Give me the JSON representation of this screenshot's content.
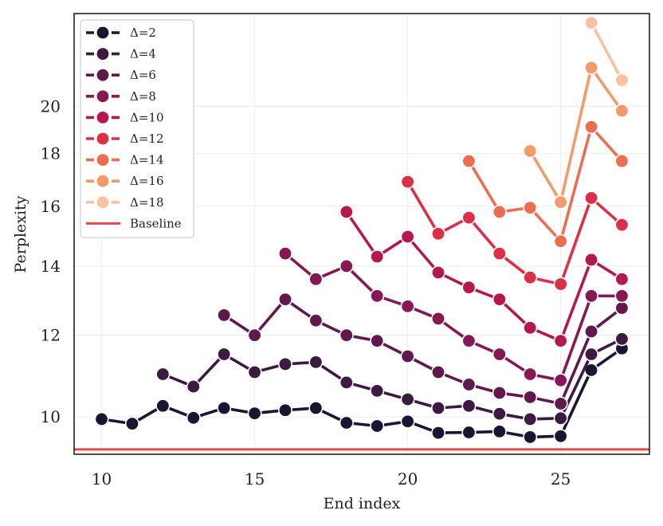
{
  "chart_data": {
    "type": "line",
    "title": "",
    "xlabel": "End index",
    "ylabel": "Perplexity",
    "yscale": "log",
    "xlim": [
      9.1,
      27.9
    ],
    "ylim": [
      9.2,
      24.6
    ],
    "x_ticks": [
      10,
      15,
      20,
      25
    ],
    "y_ticks": [
      10,
      12,
      14,
      16,
      18,
      20
    ],
    "grid": true,
    "legend_position": "top-left",
    "baseline": {
      "name": "Baseline",
      "value": 9.3,
      "color": "#e8474c"
    },
    "series": [
      {
        "name": "Δ=2",
        "color": "#1c1433",
        "x": [
          10,
          11,
          12,
          13,
          14,
          15,
          16,
          17,
          18,
          19,
          20,
          21,
          22,
          23,
          24,
          25,
          26,
          27
        ],
        "y": [
          9.95,
          9.85,
          10.25,
          9.98,
          10.2,
          10.08,
          10.15,
          10.2,
          9.87,
          9.8,
          9.9,
          9.65,
          9.66,
          9.68,
          9.56,
          9.58,
          11.1,
          11.65
        ]
      },
      {
        "name": "Δ=4",
        "color": "#3d1a42",
        "x": [
          12,
          13,
          14,
          15,
          16,
          17,
          18,
          19,
          20,
          21,
          22,
          23,
          24,
          25,
          26,
          27
        ],
        "y": [
          11.0,
          10.7,
          11.5,
          11.05,
          11.25,
          11.3,
          10.8,
          10.6,
          10.4,
          10.2,
          10.25,
          10.07,
          9.95,
          9.97,
          11.5,
          11.9
        ]
      },
      {
        "name": "Δ=6",
        "color": "#60184d",
        "x": [
          14,
          15,
          16,
          17,
          18,
          19,
          20,
          21,
          22,
          23,
          24,
          25,
          26,
          27
        ],
        "y": [
          12.55,
          12.0,
          13.0,
          12.4,
          12.0,
          11.85,
          11.45,
          11.05,
          10.75,
          10.55,
          10.45,
          10.3,
          12.1,
          12.75
        ]
      },
      {
        "name": "Δ=8",
        "color": "#861853",
        "x": [
          16,
          17,
          18,
          19,
          20,
          21,
          22,
          23,
          24,
          25,
          26,
          27
        ],
        "y": [
          14.4,
          13.6,
          14.0,
          13.1,
          12.8,
          12.45,
          11.85,
          11.5,
          11.0,
          10.85,
          13.1,
          13.1
        ]
      },
      {
        "name": "Δ=10",
        "color": "#b41851",
        "x": [
          18,
          19,
          20,
          21,
          22,
          23,
          24,
          25,
          26,
          27
        ],
        "y": [
          15.8,
          14.3,
          14.95,
          13.8,
          13.35,
          13.0,
          12.2,
          11.85,
          14.2,
          13.6
        ]
      },
      {
        "name": "Δ=12",
        "color": "#dc2f48",
        "x": [
          20,
          21,
          22,
          23,
          24,
          25,
          26,
          27
        ],
        "y": [
          16.9,
          15.05,
          15.6,
          14.4,
          13.65,
          13.45,
          16.3,
          15.35
        ]
      },
      {
        "name": "Δ=14",
        "color": "#ec4f3c",
        "x": [
          22,
          23,
          24,
          25,
          26,
          27
        ],
        "y": [
          17.7,
          15.8,
          15.95,
          14.8,
          19.1,
          17.7
        ]
      },
      {
        "name": "Δ=16",
        "color": "#f57c53",
        "x": [
          24,
          25,
          26,
          27
        ],
        "y": [
          18.1,
          16.15,
          21.8,
          19.8
        ]
      },
      {
        "name": "Δ=18",
        "color": "#f7a67e",
        "x": [
          26,
          27
        ],
        "y": [
          24.1,
          21.2
        ]
      }
    ]
  },
  "legend": {
    "entries": [
      {
        "label": "Δ=2",
        "color": "#1c1433",
        "kind": "line-marker"
      },
      {
        "label": "Δ=4",
        "color": "#3d1a42",
        "kind": "line-marker"
      },
      {
        "label": "Δ=6",
        "color": "#60184d",
        "kind": "line-marker"
      },
      {
        "label": "Δ=8",
        "color": "#861853",
        "kind": "line-marker"
      },
      {
        "label": "Δ=10",
        "color": "#b41851",
        "kind": "line-marker"
      },
      {
        "label": "Δ=12",
        "color": "#dc2f48",
        "kind": "line-marker"
      },
      {
        "label": "Δ=14",
        "color": "#ec4f3c",
        "kind": "line-marker"
      },
      {
        "label": "Δ=16",
        "color": "#f57c53",
        "kind": "line-marker"
      },
      {
        "label": "Δ=18",
        "color": "#f7a67e",
        "kind": "line-marker"
      },
      {
        "label": "Baseline",
        "color": "#e8474c",
        "kind": "line"
      }
    ]
  },
  "style": {
    "legend_series_colors_note": "legend markers use lighter tones matching series order",
    "legend_marker_colors": [
      "#1c1433",
      "#3d1a42",
      "#60184d",
      "#861853",
      "#b41851",
      "#dc2f48",
      "#ec4f3c",
      "#f57c53",
      "#f7a67e"
    ],
    "series_colors_render": [
      "#1c1433",
      "#3d1a42",
      "#60184d",
      "#861853",
      "#b41851",
      "#dc2f48",
      "#ec6e52",
      "#f39a6c",
      "#f7c2a2"
    ]
  }
}
